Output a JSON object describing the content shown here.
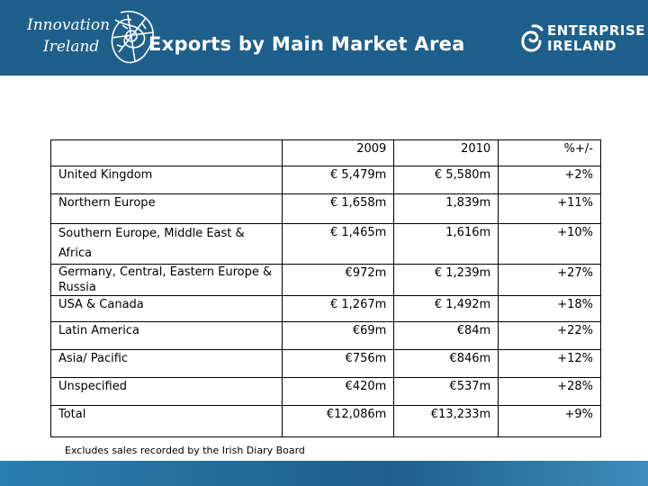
{
  "header": {
    "title": "Exports by Main Market Area",
    "left_logo": {
      "line1": "Innovation",
      "line2": "Ireland",
      "icon": "celtic-knot-icon"
    },
    "right_logo": {
      "line1": "ENTERPRISE",
      "line2": "IRELAND",
      "icon": "enterprise-swirl-icon"
    },
    "colors": {
      "header_bg": "#1f5f8b",
      "text": "#ffffff"
    }
  },
  "table": {
    "columns": [
      "",
      "2009",
      "2010",
      "%+/-"
    ],
    "rows": [
      {
        "market": "United Kingdom",
        "y2009": "€ 5,479m",
        "y2010": "€ 5,580m",
        "change": "+2%"
      },
      {
        "market": "Northern Europe",
        "y2009": "€ 1,658m",
        "y2010": "1,839m",
        "change": "+11%"
      },
      {
        "market": "Southern Europe, Middle East & Africa",
        "y2009": "€ 1,465m",
        "y2010": "1,616m",
        "change": "+10%"
      },
      {
        "market": "Germany, Central, Eastern Europe & Russia",
        "y2009": "€972m",
        "y2010": "€ 1,239m",
        "change": "+27%"
      },
      {
        "market": "USA & Canada",
        "y2009": "€ 1,267m",
        "y2010": "€ 1,492m",
        "change": "+18%"
      },
      {
        "market": "Latin America",
        "y2009": "€69m",
        "y2010": "€84m",
        "change": "+22%"
      },
      {
        "market": "Asia/ Pacific",
        "y2009": "€756m",
        "y2010": "€846m",
        "change": "+12%"
      },
      {
        "market": "Unspecified",
        "y2009": "€420m",
        "y2010": "€537m",
        "change": "+28%"
      },
      {
        "market": "Total",
        "y2009": "€12,086m",
        "y2010": "€13,233m",
        "change": "+9%"
      }
    ]
  },
  "footnote": "Excludes sales recorded by the Irish Diary Board"
}
